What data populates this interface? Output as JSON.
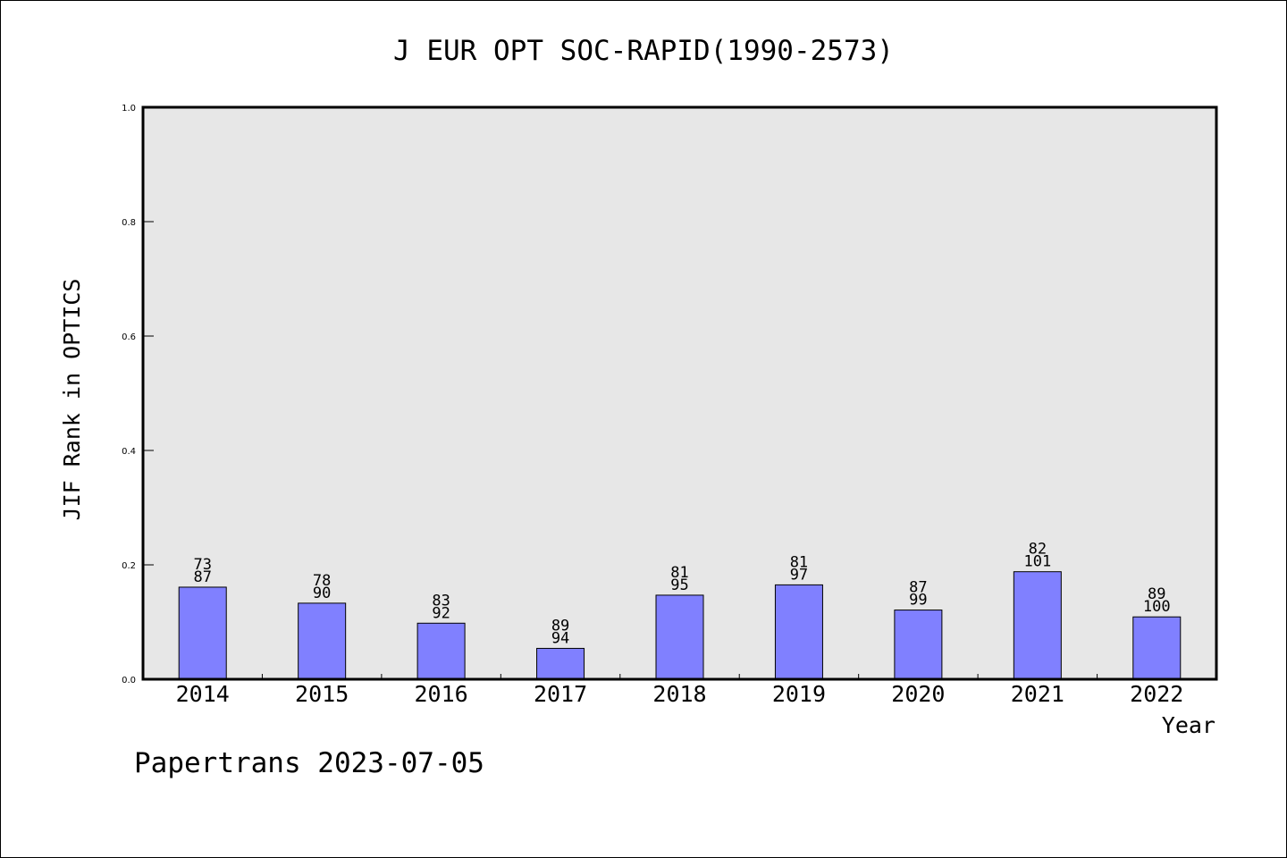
{
  "chart_data": {
    "type": "bar",
    "title": "J EUR OPT SOC-RAPID(1990-2573)",
    "xlabel": "Year",
    "ylabel": "JIF Rank in OPTICS",
    "ylim": [
      0,
      1.0
    ],
    "yticks": [
      "0.0",
      "0.2",
      "0.4",
      "0.6",
      "0.8",
      "1.0"
    ],
    "grid": false,
    "categories": [
      "2014",
      "2015",
      "2016",
      "2017",
      "2018",
      "2019",
      "2020",
      "2021",
      "2022"
    ],
    "values": [
      0.161,
      0.133,
      0.098,
      0.054,
      0.147,
      0.165,
      0.121,
      0.188,
      0.109
    ],
    "rank": [
      73,
      78,
      83,
      89,
      81,
      81,
      87,
      82,
      89
    ],
    "total": [
      87,
      90,
      92,
      94,
      95,
      97,
      99,
      101,
      100
    ],
    "colors": {
      "bar": "#8080ff",
      "plot_bg": "#e7e7e7",
      "axis": "#000000"
    }
  },
  "footer": {
    "text": "Papertrans 2023-07-05"
  }
}
